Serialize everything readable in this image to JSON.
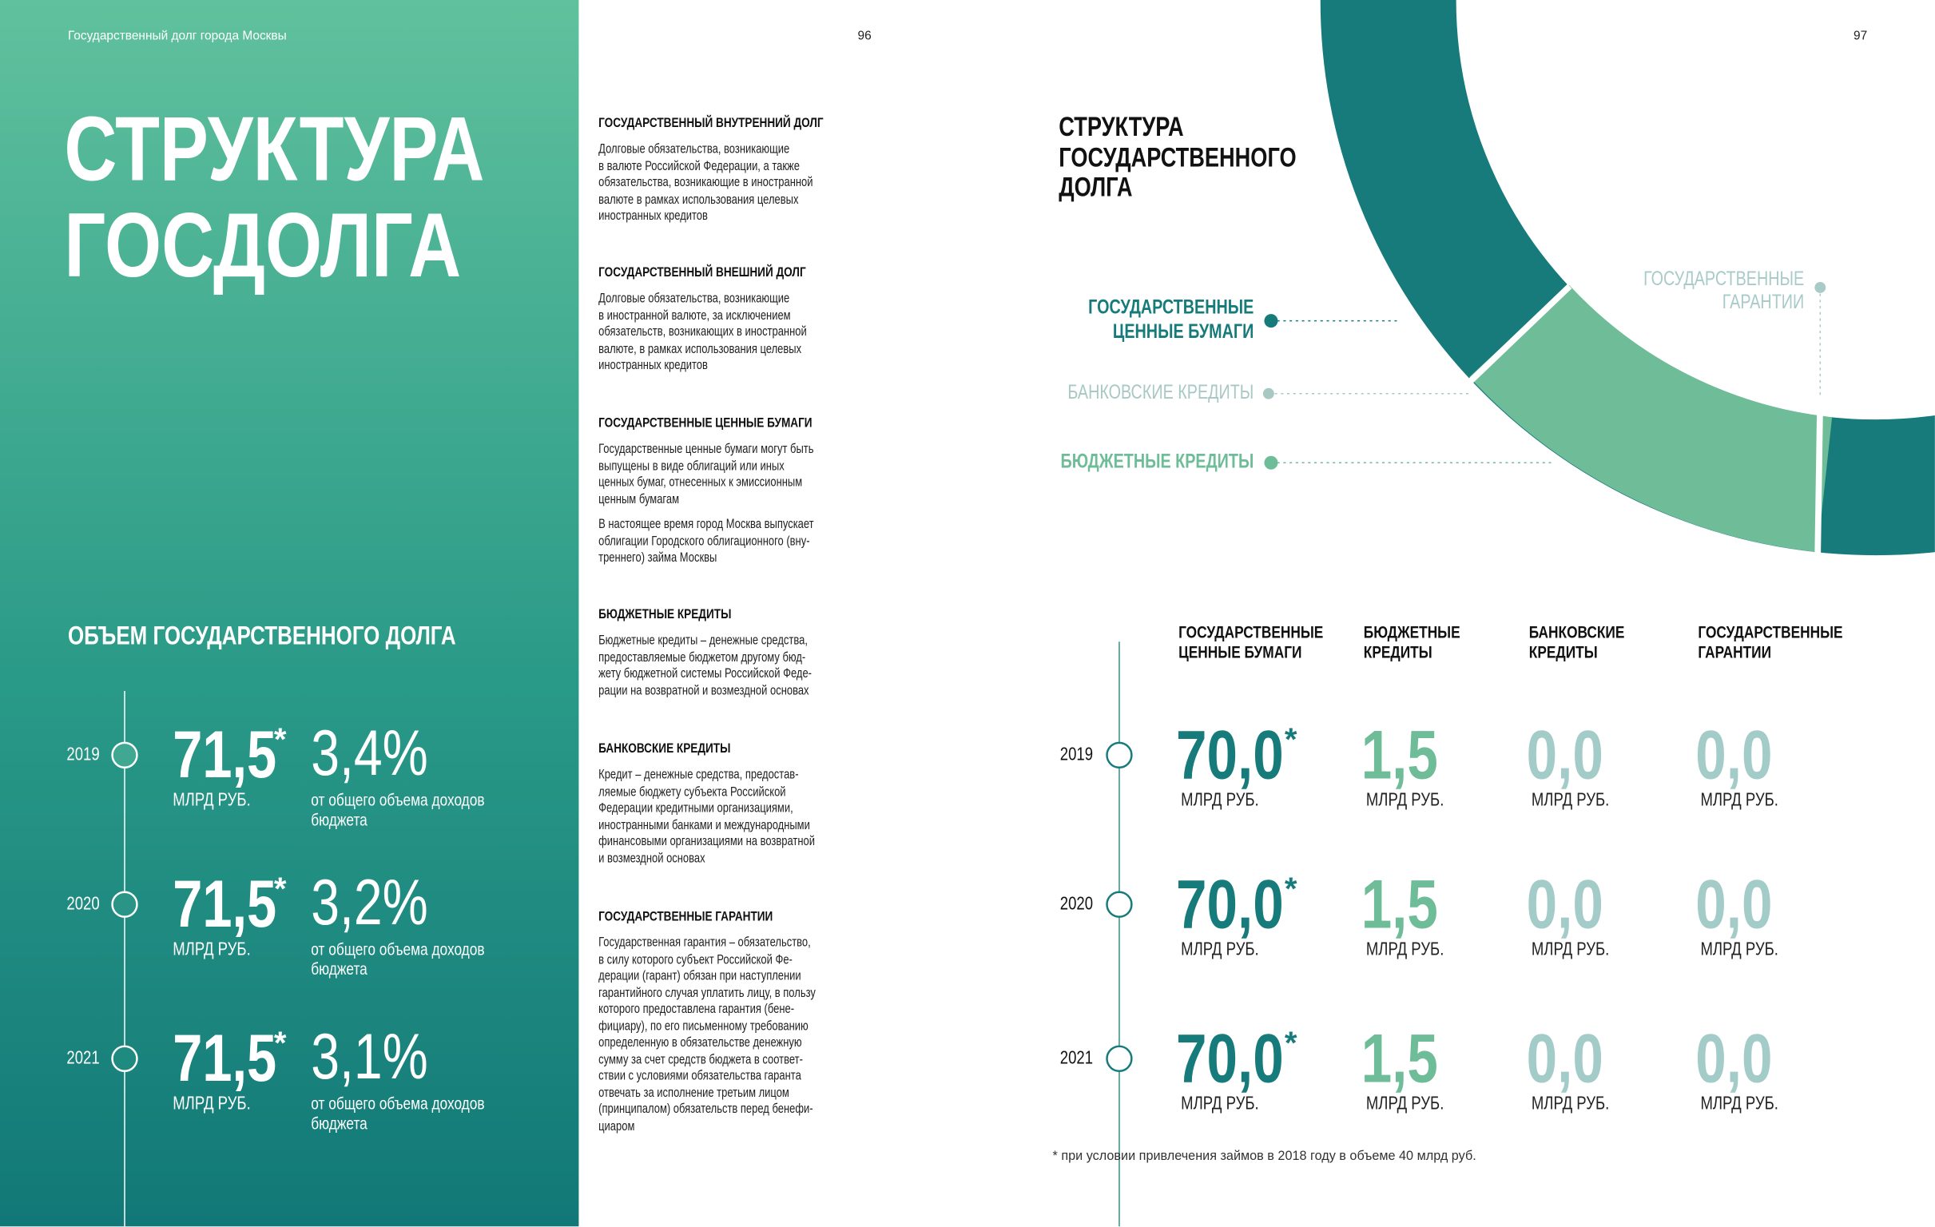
{
  "header": {
    "left_title": "Государственный долг города Москвы",
    "page_left": "96",
    "page_right": "97"
  },
  "hero": {
    "lines": [
      "СТРУКТУРА",
      "ГОСДОЛГА"
    ]
  },
  "volume": {
    "title": "ОБЪЕМ ГОСУДАРСТВЕННОГО ДОЛГА",
    "rows": [
      {
        "year": "2019",
        "value": "71,5",
        "star": "*",
        "unit": "МЛРД РУБ.",
        "percent": "3,4%",
        "note": [
          "от общего объема доходов",
          "бюджета"
        ]
      },
      {
        "year": "2020",
        "value": "71,5",
        "star": "*",
        "unit": "МЛРД РУБ.",
        "percent": "3,2%",
        "note": [
          "от общего объема доходов",
          "бюджета"
        ]
      },
      {
        "year": "2021",
        "value": "71,5",
        "star": "*",
        "unit": "МЛРД РУБ.",
        "percent": "3,1%",
        "note": [
          "от общего объема доходов",
          "бюджета"
        ]
      }
    ]
  },
  "definitions": [
    {
      "title": "ГОСУДАРСТВЕННЫЙ ВНУТРЕННИЙ ДОЛГ",
      "paragraphs": [
        [
          "Долговые обязательства, возникающие",
          "в валюте Российской Федерации, а также",
          "обязательства, возникающие в иностранной",
          "валюте в рамках использования целевых",
          "иностранных кредитов"
        ]
      ]
    },
    {
      "title": "ГОСУДАРСТВЕННЫЙ ВНЕШНИЙ ДОЛГ",
      "paragraphs": [
        [
          "Долговые обязательства, возникающие",
          "в иностранной валюте, за исключением",
          "обязательств, возникающих в иностранной",
          "валюте, в рамках использования целевых",
          "иностранных кредитов"
        ]
      ]
    },
    {
      "title": "ГОСУДАРСТВЕННЫЕ ЦЕННЫЕ БУМАГИ",
      "paragraphs": [
        [
          "Государственные ценные бумаги могут быть",
          "выпущены в виде облигаций или иных",
          "ценных бумаг, отнесенных к эмиссионным",
          "ценным бумагам"
        ],
        [
          "В настоящее время город Москва выпускает",
          "облигации Городского облигационного (вну-",
          "треннего) займа Москвы"
        ]
      ]
    },
    {
      "title": "БЮДЖЕТНЫЕ КРЕДИТЫ",
      "paragraphs": [
        [
          "Бюджетные кредиты – денежные средства,",
          "предоставляемые бюджетом другому бюд-",
          "жету бюджетной системы Российской Феде-",
          "рации на возвратной и возмездной основах"
        ]
      ]
    },
    {
      "title": "БАНКОВСКИЕ КРЕДИТЫ",
      "paragraphs": [
        [
          "Кредит – денежные средства, предостав-",
          "ляемые бюджету субъекта Российской",
          "Федерации кредитными организациями,",
          "иностранными банками и международными",
          "финансовыми организациями на возвратной",
          "и возмездной основах"
        ]
      ]
    },
    {
      "title": "ГОСУДАРСТВЕННЫЕ ГАРАНТИИ",
      "paragraphs": [
        [
          "Государственная гарантия – обязательство,",
          "в силу которого субъект Российской Фе-",
          "дерации (гарант) обязан при наступлении",
          "гарантийного случая уплатить лицу, в пользу",
          "которого предоставлена гарантия (бене-",
          "фициару), по его письменному требованию",
          "определенную в обязательстве денежную",
          "сумму за счет средств бюджета в соответ-",
          "ствии с условиями обязательства гаранта",
          "отвечать за исполнение третьим лицом",
          "(принципалом) обязательств перед бенефи-",
          "циаром"
        ]
      ]
    }
  ],
  "structure": {
    "title": [
      "СТРУКТУРА",
      "ГОСУДАРСТВЕННОГО",
      "ДОЛГА"
    ],
    "labels": [
      {
        "lines": [
          "ГОСУДАРСТВЕННЫЕ",
          "ЦЕННЫЕ БУМАГИ"
        ]
      },
      {
        "lines": [
          "БАНКОВСКИЕ КРЕДИТЫ"
        ]
      },
      {
        "lines": [
          "БЮДЖЕТНЫЕ КРЕДИТЫ"
        ]
      },
      {
        "lines": [
          "ГОСУДАРСТВЕННЫЕ",
          "ГАРАНТИИ"
        ]
      }
    ]
  },
  "table": {
    "headers": [
      [
        "ГОСУДАРСТВЕННЫЕ",
        "ЦЕННЫЕ БУМАГИ"
      ],
      [
        "БЮДЖЕТНЫЕ",
        "КРЕДИТЫ"
      ],
      [
        "БАНКОВСКИЕ",
        "КРЕДИТЫ"
      ],
      [
        "ГОСУДАРСТВЕННЫЕ",
        "ГАРАНТИИ"
      ]
    ],
    "rows": [
      {
        "year": "2019",
        "cells": [
          {
            "value": "70,0",
            "star": "*",
            "unit": "МЛРД РУБ."
          },
          {
            "value": "1,5",
            "unit": "МЛРД РУБ."
          },
          {
            "value": "0,0",
            "unit": "МЛРД РУБ."
          },
          {
            "value": "0,0",
            "unit": "МЛРД РУБ."
          }
        ]
      },
      {
        "year": "2020",
        "cells": [
          {
            "value": "70,0",
            "star": "*",
            "unit": "МЛРД РУБ."
          },
          {
            "value": "1,5",
            "unit": "МЛРД РУБ."
          },
          {
            "value": "0,0",
            "unit": "МЛРД РУБ."
          },
          {
            "value": "0,0",
            "unit": "МЛРД РУБ."
          }
        ]
      },
      {
        "year": "2021",
        "cells": [
          {
            "value": "70,0",
            "star": "*",
            "unit": "МЛРД РУБ."
          },
          {
            "value": "1,5",
            "unit": "МЛРД РУБ."
          },
          {
            "value": "0,0",
            "unit": "МЛРД РУБ."
          },
          {
            "value": "0,0",
            "unit": "МЛРД РУБ."
          }
        ]
      }
    ]
  },
  "footnote": "* при условии привлечения займов в 2018 году в объеме 40 млрд руб."
}
